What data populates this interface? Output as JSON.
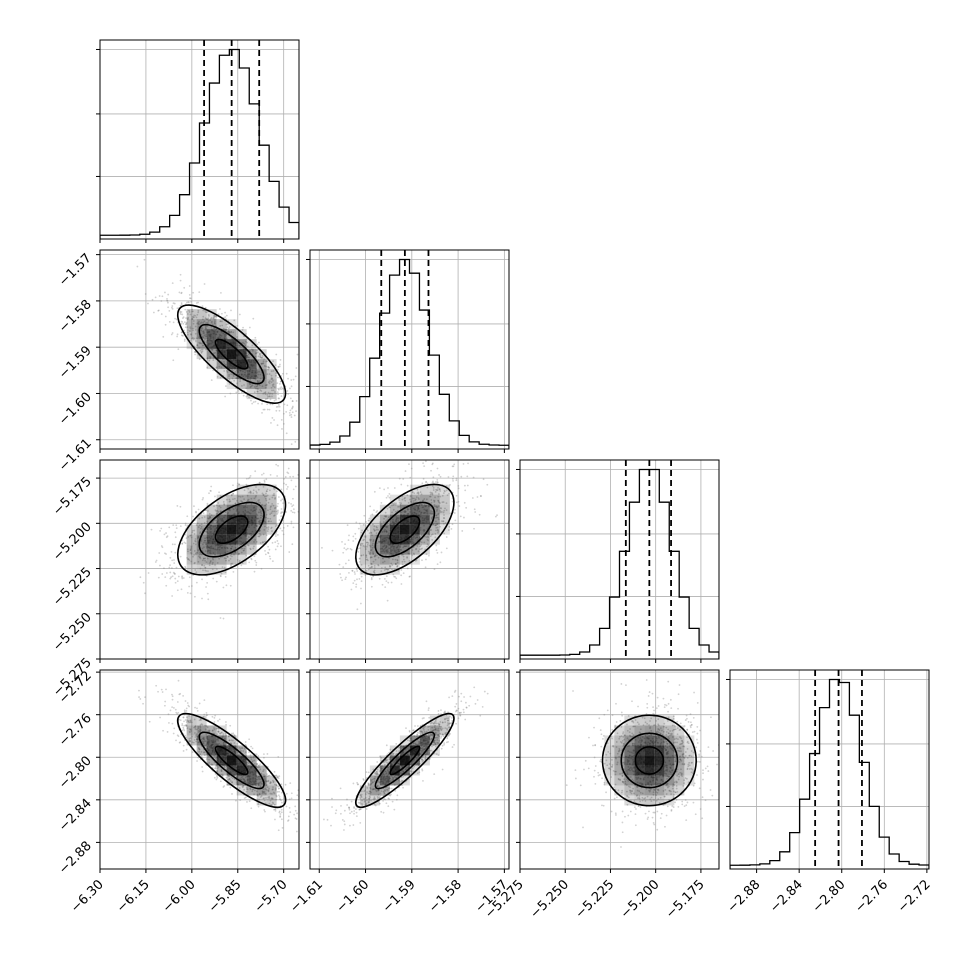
{
  "chart_data": {
    "type": "corner",
    "n_params": 4,
    "params": [
      {
        "range": [
          -6.3,
          -5.65
        ],
        "ticks": [
          -6.3,
          -6.15,
          -6.0,
          -5.85,
          -5.7
        ],
        "tick_labels": [
          "−6.30",
          "−6.15",
          "−6.00",
          "−5.85",
          "−5.70"
        ],
        "mean": -5.87,
        "std": 0.088,
        "quantiles": [
          -5.96,
          -5.87,
          -5.78
        ]
      },
      {
        "range": [
          -1.612,
          -1.569
        ],
        "ticks": [
          -1.61,
          -1.6,
          -1.59,
          -1.58,
          -1.57
        ],
        "tick_labels": [
          "−1.61",
          "−1.60",
          "−1.59",
          "−1.58",
          "−1.57"
        ],
        "mean": -1.5915,
        "std": 0.0053,
        "quantiles": [
          -1.5966,
          -1.5915,
          -1.5864
        ]
      },
      {
        "range": [
          -5.275,
          -5.165
        ],
        "ticks": [
          -5.275,
          -5.25,
          -5.225,
          -5.2,
          -5.175
        ],
        "tick_labels": [
          "−5.275",
          "−5.250",
          "−5.225",
          "−5.200",
          "−5.175"
        ],
        "mean": -5.2035,
        "std": 0.0125,
        "quantiles": [
          -5.2165,
          -5.2035,
          -5.1915
        ]
      },
      {
        "range": [
          -2.905,
          -2.718
        ],
        "ticks": [
          -2.88,
          -2.84,
          -2.8,
          -2.76,
          -2.72
        ],
        "tick_labels": [
          "−2.88",
          "−2.84",
          "−2.80",
          "−2.76",
          "−2.72"
        ],
        "mean": -2.803,
        "std": 0.022,
        "quantiles": [
          -2.825,
          -2.803,
          -2.781
        ]
      }
    ],
    "correlations": {
      "1,0": -0.8,
      "2,0": 0.55,
      "2,1": 0.6,
      "3,0": -0.85,
      "3,1": 0.9,
      "3,2": 0.0
    },
    "grid": true,
    "quantile_lines": "dashed",
    "contour_levels": 3,
    "colors": {
      "line": "#000000",
      "grid": "#b0b0b0",
      "points": "#7f7f7f",
      "density": "#000000"
    }
  }
}
